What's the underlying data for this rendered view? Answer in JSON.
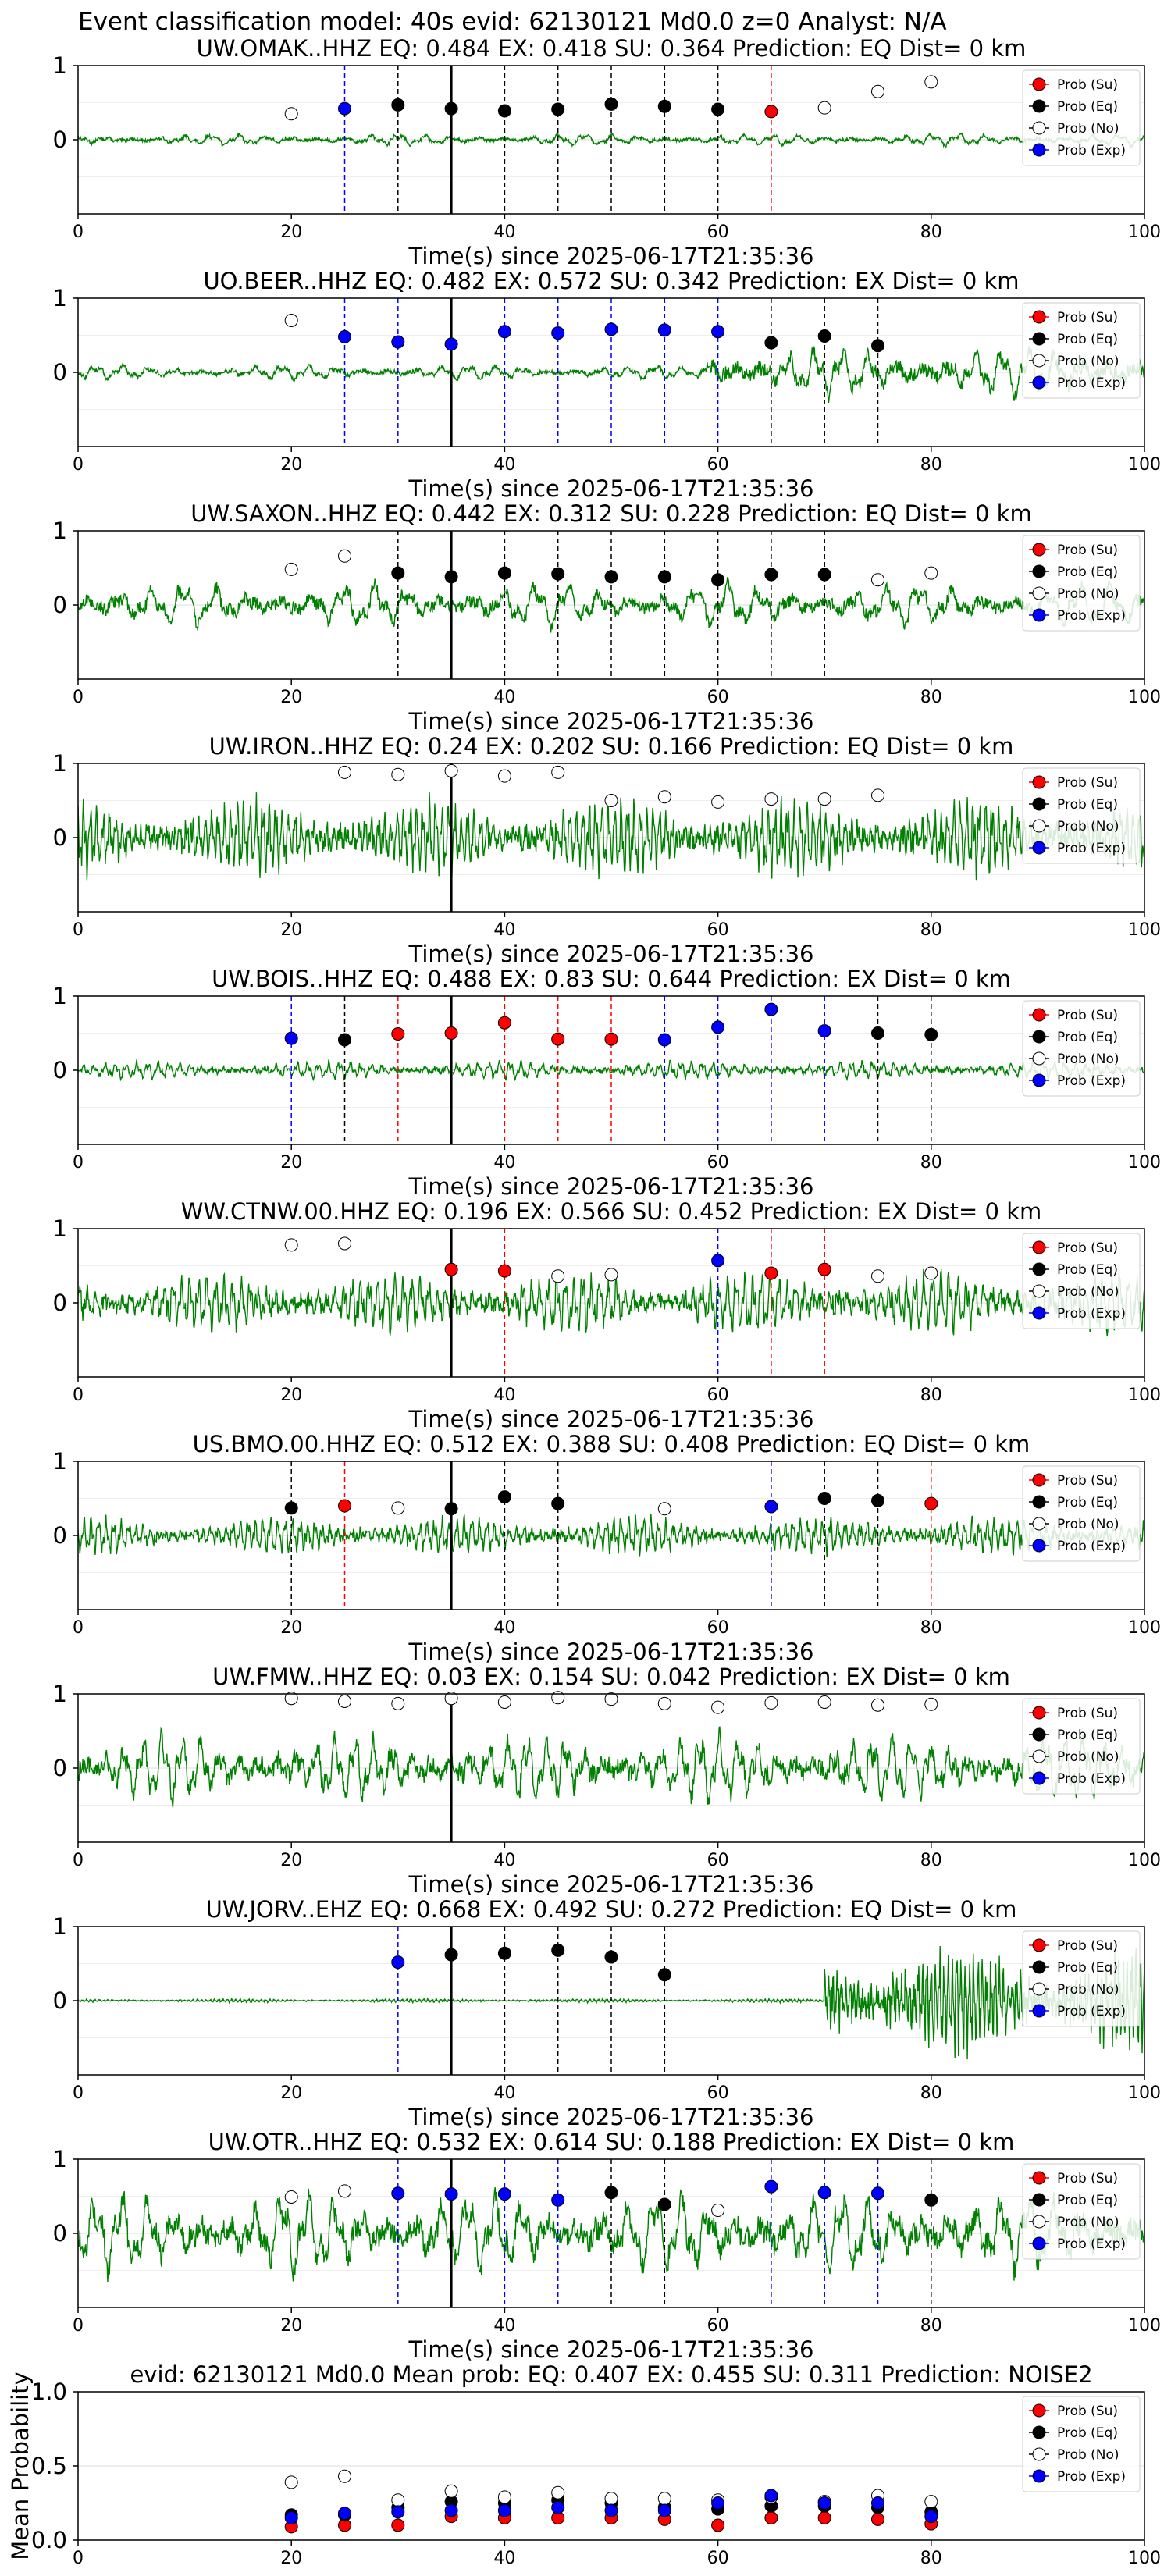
{
  "suptitle": "Event classification model: 40s evid: 62130121 Md0.0 z=0 Analyst: N/A",
  "legend": {
    "su": {
      "label": "Prob (Su)",
      "color": "#ff0000"
    },
    "eq": {
      "label": "Prob (Eq)",
      "color": "#000000"
    },
    "no": {
      "label": "Prob (No)",
      "color": "#ffffff"
    },
    "exp": {
      "label": "Prob (Exp)",
      "color": "#0000ff"
    }
  },
  "colors": {
    "trace": "#008000",
    "mean_line": "#000000",
    "su_line": "#ff0000",
    "eq_line": "#000000",
    "exp_line": "#0000ff"
  },
  "chart_data": [
    {
      "type": "line",
      "title": "UW.OMAK..HHZ   EQ: 0.484  EX: 0.418  SU: 0.364   Prediction: EQ    Dist= 0 km",
      "xlabel": "Time(s) since 2025-06-17T21:35:36",
      "ylabel": "",
      "xlim": [
        0,
        100
      ],
      "ylim": [
        -1,
        1
      ],
      "xticks": [
        0,
        20,
        40,
        60,
        80,
        100
      ],
      "yticks": [
        0,
        1
      ],
      "legend_position": "top-right",
      "grid": "y",
      "mean_marker": 35,
      "markers": [
        [
          20,
          "no",
          0.35
        ],
        [
          25,
          "exp",
          0.42
        ],
        [
          30,
          "eq",
          0.47
        ],
        [
          35,
          "eq",
          0.42
        ],
        [
          40,
          "eq",
          0.39
        ],
        [
          45,
          "eq",
          0.41
        ],
        [
          50,
          "eq",
          0.48
        ],
        [
          55,
          "eq",
          0.45
        ],
        [
          60,
          "eq",
          0.41
        ],
        [
          65,
          "su",
          0.38
        ],
        [
          70,
          "no",
          0.43
        ],
        [
          75,
          "no",
          0.65
        ],
        [
          80,
          "no",
          0.78
        ]
      ],
      "waveform": {
        "amplitude": 0.07,
        "burst_start": 0,
        "burst_amp": 0.08,
        "period": 2.5
      }
    },
    {
      "type": "line",
      "title": "UO.BEER..HHZ   EQ: 0.482  EX: 0.572  SU: 0.342   Prediction: EX    Dist= 0 km",
      "xlabel": "Time(s) since 2025-06-17T21:35:36",
      "ylabel": "",
      "xlim": [
        0,
        100
      ],
      "ylim": [
        -1,
        1
      ],
      "xticks": [
        0,
        20,
        40,
        60,
        80,
        100
      ],
      "yticks": [
        0,
        1
      ],
      "legend_position": "top-right",
      "grid": "y",
      "mean_marker": 35,
      "markers": [
        [
          20,
          "no",
          0.7
        ],
        [
          25,
          "exp",
          0.48
        ],
        [
          30,
          "exp",
          0.41
        ],
        [
          35,
          "exp",
          0.38
        ],
        [
          40,
          "exp",
          0.55
        ],
        [
          45,
          "exp",
          0.53
        ],
        [
          50,
          "exp",
          0.58
        ],
        [
          55,
          "exp",
          0.57
        ],
        [
          60,
          "exp",
          0.55
        ],
        [
          65,
          "eq",
          0.4
        ],
        [
          70,
          "eq",
          0.49
        ],
        [
          75,
          "eq",
          0.36
        ]
      ],
      "waveform": {
        "amplitude": 0.1,
        "burst_start": 59,
        "burst_amp": 0.35,
        "period": 2.5
      }
    },
    {
      "type": "line",
      "title": "UW.SAXON..HHZ   EQ: 0.442  EX: 0.312  SU: 0.228   Prediction: EQ    Dist= 0 km",
      "xlabel": "Time(s) since 2025-06-17T21:35:36",
      "ylabel": "",
      "xlim": [
        0,
        100
      ],
      "ylim": [
        -1,
        1
      ],
      "xticks": [
        0,
        20,
        40,
        60,
        80,
        100
      ],
      "yticks": [
        0,
        1
      ],
      "legend_position": "top-right",
      "grid": "y",
      "mean_marker": 35,
      "markers": [
        [
          20,
          "no",
          0.48
        ],
        [
          25,
          "no",
          0.66
        ],
        [
          30,
          "eq",
          0.43
        ],
        [
          35,
          "eq",
          0.38
        ],
        [
          40,
          "eq",
          0.43
        ],
        [
          45,
          "eq",
          0.42
        ],
        [
          50,
          "eq",
          0.38
        ],
        [
          55,
          "eq",
          0.38
        ],
        [
          60,
          "eq",
          0.34
        ],
        [
          65,
          "eq",
          0.41
        ],
        [
          70,
          "eq",
          0.41
        ],
        [
          75,
          "no",
          0.34
        ],
        [
          80,
          "no",
          0.43
        ]
      ],
      "waveform": {
        "amplitude": 0.3,
        "burst_start": 0,
        "burst_amp": 0.3,
        "period": 3
      }
    },
    {
      "type": "line",
      "title": "UW.IRON..HHZ   EQ: 0.24  EX: 0.202  SU: 0.166   Prediction: EQ    Dist= 0 km",
      "xlabel": "Time(s) since 2025-06-17T21:35:36",
      "ylabel": "",
      "xlim": [
        0,
        100
      ],
      "ylim": [
        -1,
        1
      ],
      "xticks": [
        0,
        20,
        40,
        60,
        80,
        100
      ],
      "yticks": [
        0,
        1
      ],
      "legend_position": "top-right",
      "grid": "y",
      "mean_marker": 35,
      "markers": [
        [
          25,
          "no",
          0.88
        ],
        [
          30,
          "no",
          0.85
        ],
        [
          35,
          "no",
          0.9
        ],
        [
          40,
          "no",
          0.83
        ],
        [
          45,
          "no",
          0.88
        ],
        [
          50,
          "no",
          0.5
        ],
        [
          55,
          "no",
          0.55
        ],
        [
          60,
          "no",
          0.48
        ],
        [
          65,
          "no",
          0.52
        ],
        [
          70,
          "no",
          0.52
        ],
        [
          75,
          "no",
          0.57
        ]
      ],
      "waveform": {
        "amplitude": 0.5,
        "burst_start": 0,
        "burst_amp": 0.5,
        "period": 0.6
      }
    },
    {
      "type": "line",
      "title": "UW.BOIS..HHZ   EQ: 0.488  EX: 0.83  SU: 0.644   Prediction: EX    Dist= 0 km",
      "xlabel": "Time(s) since 2025-06-17T21:35:36",
      "ylabel": "",
      "xlim": [
        0,
        100
      ],
      "ylim": [
        -1,
        1
      ],
      "xticks": [
        0,
        20,
        40,
        60,
        80,
        100
      ],
      "yticks": [
        0,
        1
      ],
      "legend_position": "top-right",
      "grid": "y",
      "mean_marker": 35,
      "markers": [
        [
          20,
          "exp",
          0.43
        ],
        [
          25,
          "eq",
          0.41
        ],
        [
          30,
          "su",
          0.49
        ],
        [
          35,
          "su",
          0.5
        ],
        [
          40,
          "su",
          0.64
        ],
        [
          45,
          "su",
          0.42
        ],
        [
          50,
          "su",
          0.42
        ],
        [
          55,
          "exp",
          0.41
        ],
        [
          60,
          "exp",
          0.58
        ],
        [
          65,
          "exp",
          0.82
        ],
        [
          70,
          "exp",
          0.53
        ],
        [
          75,
          "eq",
          0.5
        ],
        [
          80,
          "eq",
          0.48
        ]
      ],
      "waveform": {
        "amplitude": 0.08,
        "burst_start": 0,
        "burst_amp": 0.12,
        "period": 1
      }
    },
    {
      "type": "line",
      "title": "WW.CTNW.00.HHZ   EQ: 0.196  EX: 0.566  SU: 0.452   Prediction: EX    Dist= 0 km",
      "xlabel": "Time(s) since 2025-06-17T21:35:36",
      "ylabel": "",
      "xlim": [
        0,
        100
      ],
      "ylim": [
        -1,
        1
      ],
      "xticks": [
        0,
        20,
        40,
        60,
        80,
        100
      ],
      "yticks": [
        0,
        1
      ],
      "legend_position": "top-right",
      "grid": "y",
      "mean_marker": 35,
      "markers": [
        [
          20,
          "no",
          0.78
        ],
        [
          25,
          "no",
          0.8
        ],
        [
          35,
          "su",
          0.45
        ],
        [
          40,
          "su",
          0.43
        ],
        [
          45,
          "no",
          0.36
        ],
        [
          50,
          "no",
          0.38
        ],
        [
          60,
          "exp",
          0.57
        ],
        [
          65,
          "su",
          0.4
        ],
        [
          70,
          "su",
          0.45
        ],
        [
          75,
          "no",
          0.36
        ],
        [
          80,
          "no",
          0.4
        ]
      ],
      "waveform": {
        "amplitude": 0.4,
        "burst_start": 0,
        "burst_amp": 0.4,
        "period": 0.8
      }
    },
    {
      "type": "line",
      "title": "US.BMO.00.HHZ   EQ: 0.512  EX: 0.388  SU: 0.408   Prediction: EQ    Dist= 0 km",
      "xlabel": "Time(s) since 2025-06-17T21:35:36",
      "ylabel": "",
      "xlim": [
        0,
        100
      ],
      "ylim": [
        -1,
        1
      ],
      "xticks": [
        0,
        20,
        40,
        60,
        80,
        100
      ],
      "yticks": [
        0,
        1
      ],
      "legend_position": "top-right",
      "grid": "y",
      "mean_marker": 35,
      "markers": [
        [
          20,
          "eq",
          0.37
        ],
        [
          25,
          "su",
          0.4
        ],
        [
          30,
          "no",
          0.37
        ],
        [
          35,
          "eq",
          0.36
        ],
        [
          40,
          "eq",
          0.52
        ],
        [
          45,
          "eq",
          0.43
        ],
        [
          55,
          "no",
          0.36
        ],
        [
          65,
          "exp",
          0.39
        ],
        [
          70,
          "eq",
          0.5
        ],
        [
          75,
          "eq",
          0.47
        ],
        [
          80,
          "su",
          0.43
        ]
      ],
      "waveform": {
        "amplitude": 0.2,
        "burst_start": 0,
        "burst_amp": 0.25,
        "period": 0.7
      }
    },
    {
      "type": "line",
      "title": "UW.FMW..HHZ   EQ: 0.03  EX: 0.154  SU: 0.042   Prediction: EX    Dist= 0 km",
      "xlabel": "Time(s) since 2025-06-17T21:35:36",
      "ylabel": "",
      "xlim": [
        0,
        100
      ],
      "ylim": [
        -1,
        1
      ],
      "xticks": [
        0,
        20,
        40,
        60,
        80,
        100
      ],
      "yticks": [
        0,
        1
      ],
      "legend_position": "top-right",
      "grid": "y",
      "mean_marker": 35,
      "markers": [
        [
          20,
          "no",
          0.94
        ],
        [
          25,
          "no",
          0.9
        ],
        [
          30,
          "no",
          0.87
        ],
        [
          35,
          "no",
          0.94
        ],
        [
          40,
          "no",
          0.89
        ],
        [
          45,
          "no",
          0.95
        ],
        [
          50,
          "no",
          0.93
        ],
        [
          55,
          "no",
          0.87
        ],
        [
          60,
          "no",
          0.82
        ],
        [
          65,
          "no",
          0.88
        ],
        [
          70,
          "no",
          0.89
        ],
        [
          75,
          "no",
          0.85
        ],
        [
          80,
          "no",
          0.86
        ]
      ],
      "waveform": {
        "amplitude": 0.45,
        "burst_start": 0,
        "burst_amp": 0.45,
        "period": 1.8
      }
    },
    {
      "type": "line",
      "title": "UW.JORV..EHZ   EQ: 0.668  EX: 0.492  SU: 0.272   Prediction: EQ    Dist= 0 km",
      "xlabel": "Time(s) since 2025-06-17T21:35:36",
      "ylabel": "",
      "xlim": [
        0,
        100
      ],
      "ylim": [
        -1,
        1
      ],
      "xticks": [
        0,
        20,
        40,
        60,
        80,
        100
      ],
      "yticks": [
        0,
        1
      ],
      "legend_position": "top-right",
      "grid": "y",
      "mean_marker": 35,
      "markers": [
        [
          30,
          "exp",
          0.52
        ],
        [
          35,
          "eq",
          0.62
        ],
        [
          40,
          "eq",
          0.64
        ],
        [
          45,
          "eq",
          0.68
        ],
        [
          50,
          "eq",
          0.59
        ],
        [
          55,
          "eq",
          0.35
        ]
      ],
      "waveform": {
        "amplitude": 0.025,
        "burst_start": 70,
        "burst_amp": 0.7,
        "period": 0.4
      }
    },
    {
      "type": "line",
      "title": "UW.OTR..HHZ   EQ: 0.532  EX: 0.614  SU: 0.188   Prediction: EX    Dist= 0 km",
      "xlabel": "Time(s) since 2025-06-17T21:35:36",
      "ylabel": "",
      "xlim": [
        0,
        100
      ],
      "ylim": [
        -1,
        1
      ],
      "xticks": [
        0,
        20,
        40,
        60,
        80,
        100
      ],
      "yticks": [
        0,
        1
      ],
      "legend_position": "top-right",
      "grid": "y",
      "mean_marker": 35,
      "markers": [
        [
          20,
          "no",
          0.49
        ],
        [
          25,
          "no",
          0.57
        ],
        [
          30,
          "exp",
          0.54
        ],
        [
          35,
          "exp",
          0.53
        ],
        [
          40,
          "exp",
          0.53
        ],
        [
          45,
          "exp",
          0.45
        ],
        [
          50,
          "eq",
          0.55
        ],
        [
          55,
          "eq",
          0.39
        ],
        [
          60,
          "no",
          0.31
        ],
        [
          65,
          "exp",
          0.63
        ],
        [
          70,
          "exp",
          0.55
        ],
        [
          75,
          "exp",
          0.54
        ],
        [
          80,
          "eq",
          0.45
        ]
      ],
      "waveform": {
        "amplitude": 0.55,
        "burst_start": 0,
        "burst_amp": 0.55,
        "period": 2.5
      }
    },
    {
      "type": "scatter",
      "title": "evid: 62130121  Md0.0   Mean prob:   EQ: 0.407  EX: 0.455  SU: 0.311   Prediction: NOISE2",
      "xlabel": "",
      "ylabel": "Mean Probability",
      "xlim": [
        0,
        100
      ],
      "ylim": [
        0,
        1
      ],
      "xticks": [
        0,
        20,
        40,
        60,
        80,
        100
      ],
      "yticks": [
        0.0,
        0.5,
        1.0
      ],
      "yticklabels": [
        "0.0",
        "0.5",
        "1.0"
      ],
      "legend_position": "top-right",
      "grid": "y",
      "series": [
        {
          "name": "Prob (Su)",
          "key": "su",
          "x": [
            20,
            25,
            30,
            35,
            40,
            45,
            50,
            55,
            60,
            65,
            70,
            75,
            80
          ],
          "values": [
            0.09,
            0.1,
            0.1,
            0.16,
            0.15,
            0.15,
            0.15,
            0.14,
            0.1,
            0.15,
            0.15,
            0.14,
            0.11
          ]
        },
        {
          "name": "Prob (Eq)",
          "key": "eq",
          "x": [
            20,
            25,
            30,
            35,
            40,
            45,
            50,
            55,
            60,
            65,
            70,
            75,
            80
          ],
          "values": [
            0.17,
            0.17,
            0.22,
            0.26,
            0.25,
            0.27,
            0.25,
            0.22,
            0.21,
            0.23,
            0.23,
            0.22,
            0.19
          ]
        },
        {
          "name": "Prob (No)",
          "key": "no",
          "x": [
            20,
            25,
            30,
            35,
            40,
            45,
            50,
            55,
            60,
            65,
            70,
            75,
            80
          ],
          "values": [
            0.39,
            0.43,
            0.27,
            0.33,
            0.29,
            0.32,
            0.28,
            0.28,
            0.27,
            0.29,
            0.26,
            0.3,
            0.26
          ]
        },
        {
          "name": "Prob (Exp)",
          "key": "exp",
          "x": [
            20,
            25,
            30,
            35,
            40,
            45,
            50,
            55,
            60,
            65,
            70,
            75,
            80
          ],
          "values": [
            0.15,
            0.18,
            0.19,
            0.2,
            0.2,
            0.22,
            0.2,
            0.2,
            0.25,
            0.3,
            0.25,
            0.25,
            0.16
          ]
        }
      ]
    }
  ]
}
